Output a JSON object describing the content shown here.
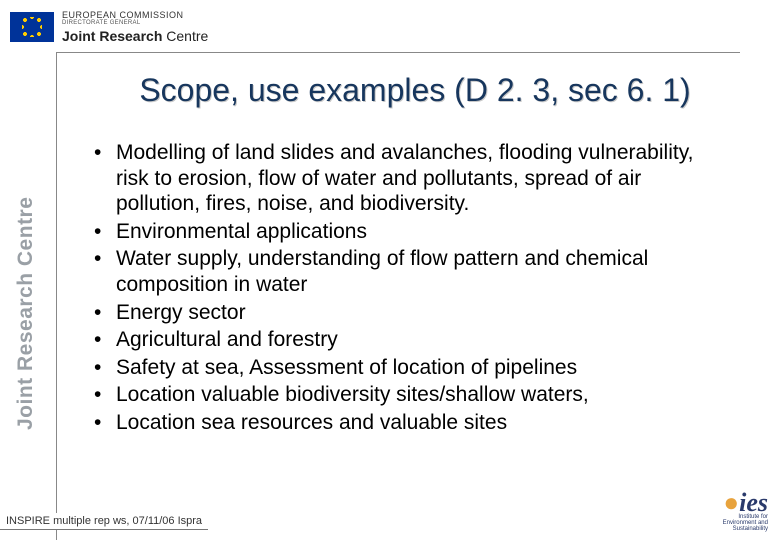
{
  "header": {
    "ec": "EUROPEAN COMMISSION",
    "dg": "DIRECTORATE GENERAL",
    "jrc_bold": "Joint Research",
    "jrc_rest": " Centre"
  },
  "sidebar_text": "Joint Research Centre",
  "title": "Scope, use examples (D 2. 3, sec 6. 1)",
  "bullets": [
    "Modelling of land slides and avalanches, flooding vulnerability, risk to erosion, flow of water and pollutants, spread of air pollution, fires, noise, and biodiversity.",
    "Environmental applications",
    "Water supply, understanding of flow pattern and chemical composition in water",
    "Energy sector",
    "Agricultural and forestry",
    "Safety at sea, Assessment of location of pipelines",
    "Location valuable biodiversity sites/shallow waters,",
    "Location sea resources and valuable sites"
  ],
  "footer": "INSPIRE multiple rep ws, 07/11/06 Ispra",
  "ies": {
    "abbr": "ies",
    "line1": "Institute for",
    "line2": "Environment and",
    "line3": "Sustainability"
  },
  "colors": {
    "title_color": "#17365d",
    "eu_flag_bg": "#003399",
    "eu_flag_stars": "#ffcc00",
    "sidebar_gray": "#9aa0a6",
    "ies_blue": "#2a3a6b",
    "ies_dot": "#e8a33d"
  },
  "typography": {
    "title_fontsize": 32,
    "bullet_fontsize": 21,
    "footer_fontsize": 11
  }
}
